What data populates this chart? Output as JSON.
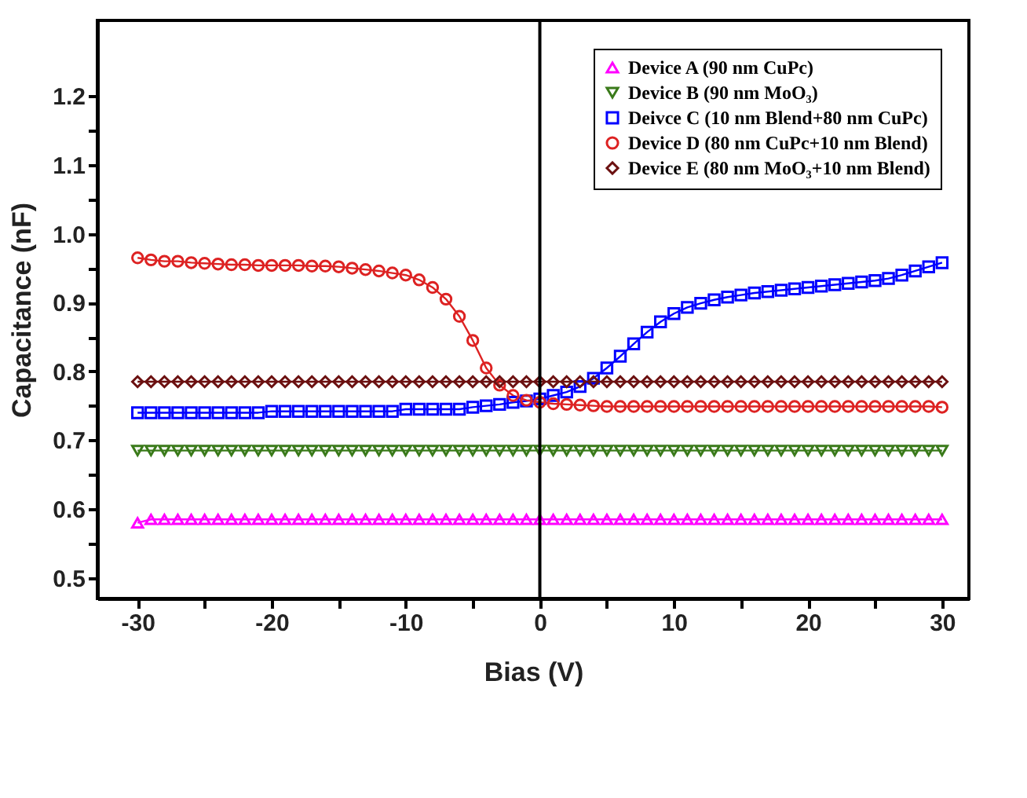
{
  "chart_data": {
    "type": "line",
    "xlabel": "Bias (V)",
    "ylabel": "Capacitance (nF)",
    "x": [
      -30,
      -29,
      -28,
      -27,
      -26,
      -25,
      -24,
      -23,
      -22,
      -21,
      -20,
      -19,
      -18,
      -17,
      -16,
      -15,
      -14,
      -13,
      -12,
      -11,
      -10,
      -9,
      -8,
      -7,
      -6,
      -5,
      -4,
      -3,
      -2,
      -1,
      0,
      1,
      2,
      3,
      4,
      5,
      6,
      7,
      8,
      9,
      10,
      11,
      12,
      13,
      14,
      15,
      16,
      17,
      18,
      19,
      20,
      21,
      22,
      23,
      24,
      25,
      26,
      27,
      28,
      29,
      30
    ],
    "xlim": [
      -33,
      32
    ],
    "ylim": [
      0.47,
      1.31
    ],
    "xticks": [
      -30,
      {
        "value": -25,
        "label": null
      },
      -20,
      {
        "value": -15,
        "label": null
      },
      -10,
      {
        "value": -5,
        "label": null
      },
      0,
      {
        "value": 5,
        "label": null
      },
      10,
      {
        "value": 15,
        "label": null
      },
      20,
      {
        "value": 25,
        "label": null
      },
      30
    ],
    "yticks": [
      0.5,
      {
        "value": 0.55,
        "label": null
      },
      0.6,
      {
        "value": 0.65,
        "label": null
      },
      0.7,
      {
        "value": 0.75,
        "label": null
      },
      0.8,
      {
        "value": 0.85,
        "label": null
      },
      0.9,
      {
        "value": 0.95,
        "label": null
      },
      {
        "value": 1,
        "label": "1.0"
      },
      {
        "value": 1.05,
        "label": null
      },
      1.1,
      {
        "value": 1.15,
        "label": null
      },
      1.2
    ],
    "grid": false,
    "legend": "top right",
    "line_style": "solid",
    "ref_lines": [
      {
        "axis": "x",
        "value": 0
      }
    ],
    "series": [
      {
        "name": "Device A (90 nm CuPc)",
        "color": "#ff00ff",
        "marker": "triangle",
        "values": [
          0.58,
          0.585,
          0.585,
          0.585,
          0.585,
          0.585,
          0.585,
          0.585,
          0.585,
          0.585,
          0.585,
          0.585,
          0.585,
          0.585,
          0.585,
          0.585,
          0.585,
          0.585,
          0.585,
          0.585,
          0.585,
          0.585,
          0.585,
          0.585,
          0.585,
          0.585,
          0.585,
          0.585,
          0.585,
          0.585,
          0.585,
          0.585,
          0.585,
          0.585,
          0.585,
          0.585,
          0.585,
          0.585,
          0.585,
          0.585,
          0.585,
          0.585,
          0.585,
          0.585,
          0.585,
          0.585,
          0.585,
          0.585,
          0.585,
          0.585,
          0.585,
          0.585,
          0.585,
          0.585,
          0.585,
          0.585,
          0.585,
          0.585,
          0.585,
          0.585,
          0.585
        ]
      },
      {
        "name": "Device B (90 nm MoO₃)",
        "color": "#3a7a1a",
        "marker": "triangle-down",
        "values": [
          0.685,
          0.685,
          0.685,
          0.685,
          0.685,
          0.685,
          0.685,
          0.685,
          0.685,
          0.685,
          0.685,
          0.685,
          0.685,
          0.685,
          0.685,
          0.685,
          0.685,
          0.685,
          0.685,
          0.685,
          0.685,
          0.685,
          0.685,
          0.685,
          0.685,
          0.685,
          0.685,
          0.685,
          0.685,
          0.685,
          0.685,
          0.685,
          0.685,
          0.685,
          0.685,
          0.685,
          0.685,
          0.685,
          0.685,
          0.685,
          0.685,
          0.685,
          0.685,
          0.685,
          0.685,
          0.685,
          0.685,
          0.685,
          0.685,
          0.685,
          0.685,
          0.685,
          0.685,
          0.685,
          0.685,
          0.685,
          0.685,
          0.685,
          0.685,
          0.685,
          0.685
        ]
      },
      {
        "name": "Deivce C (10 nm Blend+80 nm CuPc)",
        "color": "#0000ff",
        "marker": "square",
        "values": [
          0.74,
          0.74,
          0.74,
          0.74,
          0.74,
          0.74,
          0.74,
          0.74,
          0.74,
          0.74,
          0.742,
          0.742,
          0.742,
          0.742,
          0.742,
          0.742,
          0.742,
          0.742,
          0.742,
          0.742,
          0.745,
          0.745,
          0.745,
          0.745,
          0.745,
          0.748,
          0.75,
          0.752,
          0.755,
          0.757,
          0.76,
          0.765,
          0.77,
          0.778,
          0.79,
          0.805,
          0.822,
          0.84,
          0.857,
          0.872,
          0.884,
          0.893,
          0.899,
          0.904,
          0.908,
          0.911,
          0.914,
          0.916,
          0.918,
          0.92,
          0.922,
          0.924,
          0.926,
          0.928,
          0.93,
          0.932,
          0.935,
          0.94,
          0.946,
          0.952,
          0.958
        ]
      },
      {
        "name": "Device D (80 nm CuPc+10 nm Blend)",
        "color": "#dd2222",
        "marker": "circle",
        "values": [
          0.965,
          0.962,
          0.96,
          0.96,
          0.958,
          0.957,
          0.956,
          0.955,
          0.955,
          0.954,
          0.954,
          0.954,
          0.954,
          0.953,
          0.953,
          0.952,
          0.95,
          0.948,
          0.946,
          0.943,
          0.94,
          0.933,
          0.922,
          0.905,
          0.88,
          0.845,
          0.805,
          0.78,
          0.765,
          0.758,
          0.755,
          0.753,
          0.752,
          0.751,
          0.75,
          0.749,
          0.749,
          0.749,
          0.749,
          0.749,
          0.749,
          0.749,
          0.749,
          0.749,
          0.749,
          0.749,
          0.749,
          0.749,
          0.749,
          0.749,
          0.749,
          0.749,
          0.749,
          0.749,
          0.749,
          0.749,
          0.749,
          0.749,
          0.749,
          0.749,
          0.748
        ]
      },
      {
        "name": "Device E (80 nm MoO₃+10 nm Blend)",
        "color": "#6b1010",
        "marker": "diamond",
        "values": [
          0.785,
          0.785,
          0.785,
          0.785,
          0.785,
          0.785,
          0.785,
          0.785,
          0.785,
          0.785,
          0.785,
          0.785,
          0.785,
          0.785,
          0.785,
          0.785,
          0.785,
          0.785,
          0.785,
          0.785,
          0.785,
          0.785,
          0.785,
          0.785,
          0.785,
          0.785,
          0.785,
          0.785,
          0.785,
          0.785,
          0.785,
          0.785,
          0.785,
          0.785,
          0.785,
          0.785,
          0.785,
          0.785,
          0.785,
          0.785,
          0.785,
          0.785,
          0.785,
          0.785,
          0.785,
          0.785,
          0.785,
          0.785,
          0.785,
          0.785,
          0.785,
          0.785,
          0.785,
          0.785,
          0.785,
          0.785,
          0.785,
          0.785,
          0.785,
          0.785,
          0.785
        ]
      }
    ]
  }
}
